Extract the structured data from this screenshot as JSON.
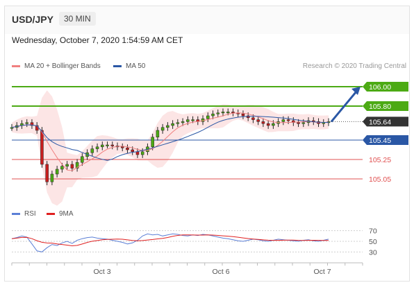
{
  "header": {
    "pair": "USD/JPY",
    "timeframe": "30 MIN"
  },
  "datetime": "Wednesday, October 7, 2020 1:54:59 AM CET",
  "legend": {
    "ma20": {
      "label": "MA 20 + Bollinger Bands",
      "color": "#f08080"
    },
    "ma50": {
      "label": "MA 50",
      "color": "#2a57a5"
    }
  },
  "rsi_legend": {
    "rsi": {
      "label": "RSI",
      "color": "#5b7fd6"
    },
    "ma9": {
      "label": "9MA",
      "color": "#e02020"
    }
  },
  "research": "Research © 2020 Trading Central",
  "chart_data": {
    "type": "candlestick",
    "price_ylim": [
      104.9,
      106.15
    ],
    "x_ticks": [
      "Oct 3",
      "Oct 6",
      "Oct 7"
    ],
    "levels": [
      {
        "value": 106.0,
        "label": "106.00",
        "role": "resistance",
        "color": "#4caa14"
      },
      {
        "value": 105.8,
        "label": "105.80",
        "role": "resistance",
        "color": "#4caa14"
      },
      {
        "value": 105.64,
        "label": "105.64",
        "role": "current",
        "color": "#333333"
      },
      {
        "value": 105.45,
        "label": "105.45",
        "role": "support",
        "color": "#2a57a5"
      },
      {
        "value": 105.25,
        "label": "105.25",
        "role": "support",
        "color": "#e05050"
      },
      {
        "value": 105.05,
        "label": "105.05",
        "role": "support",
        "color": "#e05050"
      }
    ],
    "forecast_target": 106.0,
    "price_path": [
      105.58,
      105.6,
      105.62,
      105.63,
      105.6,
      105.55,
      105.2,
      105.02,
      105.1,
      105.15,
      105.18,
      105.2,
      105.16,
      105.22,
      105.28,
      105.32,
      105.36,
      105.38,
      105.4,
      105.4,
      105.39,
      105.38,
      105.37,
      105.35,
      105.33,
      105.3,
      105.33,
      105.38,
      105.48,
      105.55,
      105.58,
      105.6,
      105.62,
      105.63,
      105.64,
      105.66,
      105.66,
      105.64,
      105.67,
      105.7,
      105.72,
      105.73,
      105.74,
      105.74,
      105.73,
      105.72,
      105.7,
      105.68,
      105.66,
      105.64,
      105.62,
      105.6,
      105.62,
      105.64,
      105.66,
      105.65,
      105.63,
      105.62,
      105.63,
      105.65,
      105.64,
      105.62,
      105.63,
      105.64
    ],
    "rsi_axis": {
      "ticks": [
        70,
        50,
        30
      ],
      "ylim": [
        20,
        80
      ]
    },
    "rsi_path": [
      55,
      57,
      60,
      58,
      45,
      32,
      30,
      38,
      44,
      42,
      47,
      50,
      46,
      52,
      55,
      57,
      58,
      56,
      55,
      54,
      52,
      50,
      48,
      45,
      47,
      52,
      60,
      64,
      62,
      63,
      60,
      62,
      64,
      63,
      61,
      60,
      62,
      61,
      63,
      62,
      60,
      58,
      56,
      55,
      53,
      51,
      50,
      52,
      54,
      53,
      51,
      50,
      52,
      54,
      53,
      52,
      51,
      50,
      52,
      53,
      51,
      50,
      52,
      54
    ]
  }
}
